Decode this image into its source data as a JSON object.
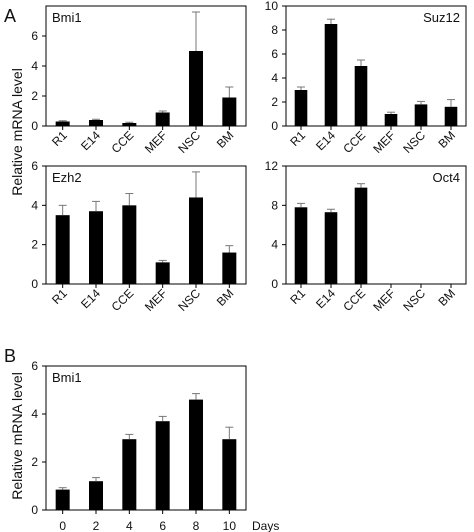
{
  "panel_labels": {
    "a": "A",
    "b": "B"
  },
  "ylabel": "Relative mRNA level",
  "chart_data": [
    {
      "type": "bar",
      "title": "Bmi1",
      "categories": [
        "R1",
        "E14",
        "CCE",
        "MEF",
        "NSC",
        "BM"
      ],
      "values": [
        0.3,
        0.4,
        0.2,
        0.9,
        5.0,
        1.9
      ],
      "errors": [
        0.05,
        0.05,
        0.05,
        0.1,
        2.6,
        0.7
      ],
      "ylim": [
        0,
        8
      ],
      "yticks": [
        0,
        2,
        4,
        6
      ]
    },
    {
      "type": "bar",
      "title": "Suz12",
      "categories": [
        "R1",
        "E14",
        "CCE",
        "MEF",
        "NSC",
        "BM"
      ],
      "values": [
        3.0,
        8.5,
        5.0,
        1.0,
        1.8,
        1.6
      ],
      "errors": [
        0.25,
        0.4,
        0.5,
        0.15,
        0.25,
        0.6
      ],
      "ylim": [
        0,
        10
      ],
      "yticks": [
        0,
        2,
        4,
        6,
        8,
        10
      ]
    },
    {
      "type": "bar",
      "title": "Ezh2",
      "categories": [
        "R1",
        "E14",
        "CCE",
        "MEF",
        "NSC",
        "BM"
      ],
      "values": [
        3.5,
        3.7,
        4.0,
        1.1,
        4.4,
        1.6
      ],
      "errors": [
        0.5,
        0.5,
        0.6,
        0.1,
        1.3,
        0.35
      ],
      "ylim": [
        0,
        6
      ],
      "yticks": [
        0,
        2,
        4,
        6
      ]
    },
    {
      "type": "bar",
      "title": "Oct4",
      "categories": [
        "R1",
        "E14",
        "CCE",
        "MEF",
        "NSC",
        "BM"
      ],
      "values": [
        7.8,
        7.3,
        9.8,
        null,
        null,
        null
      ],
      "errors": [
        0.4,
        0.3,
        0.4,
        null,
        null,
        null
      ],
      "ylim": [
        0,
        12
      ],
      "yticks": [
        0,
        4,
        8,
        12
      ]
    },
    {
      "type": "bar",
      "title": "Bmi1",
      "categories": [
        "0",
        "2",
        "4",
        "6",
        "8",
        "10"
      ],
      "xlabel": "Days",
      "values": [
        0.85,
        1.2,
        2.95,
        3.7,
        4.6,
        2.95
      ],
      "errors": [
        0.08,
        0.15,
        0.2,
        0.2,
        0.25,
        0.5
      ],
      "ylim": [
        0,
        6
      ],
      "yticks": [
        0,
        2,
        4,
        6
      ]
    }
  ]
}
